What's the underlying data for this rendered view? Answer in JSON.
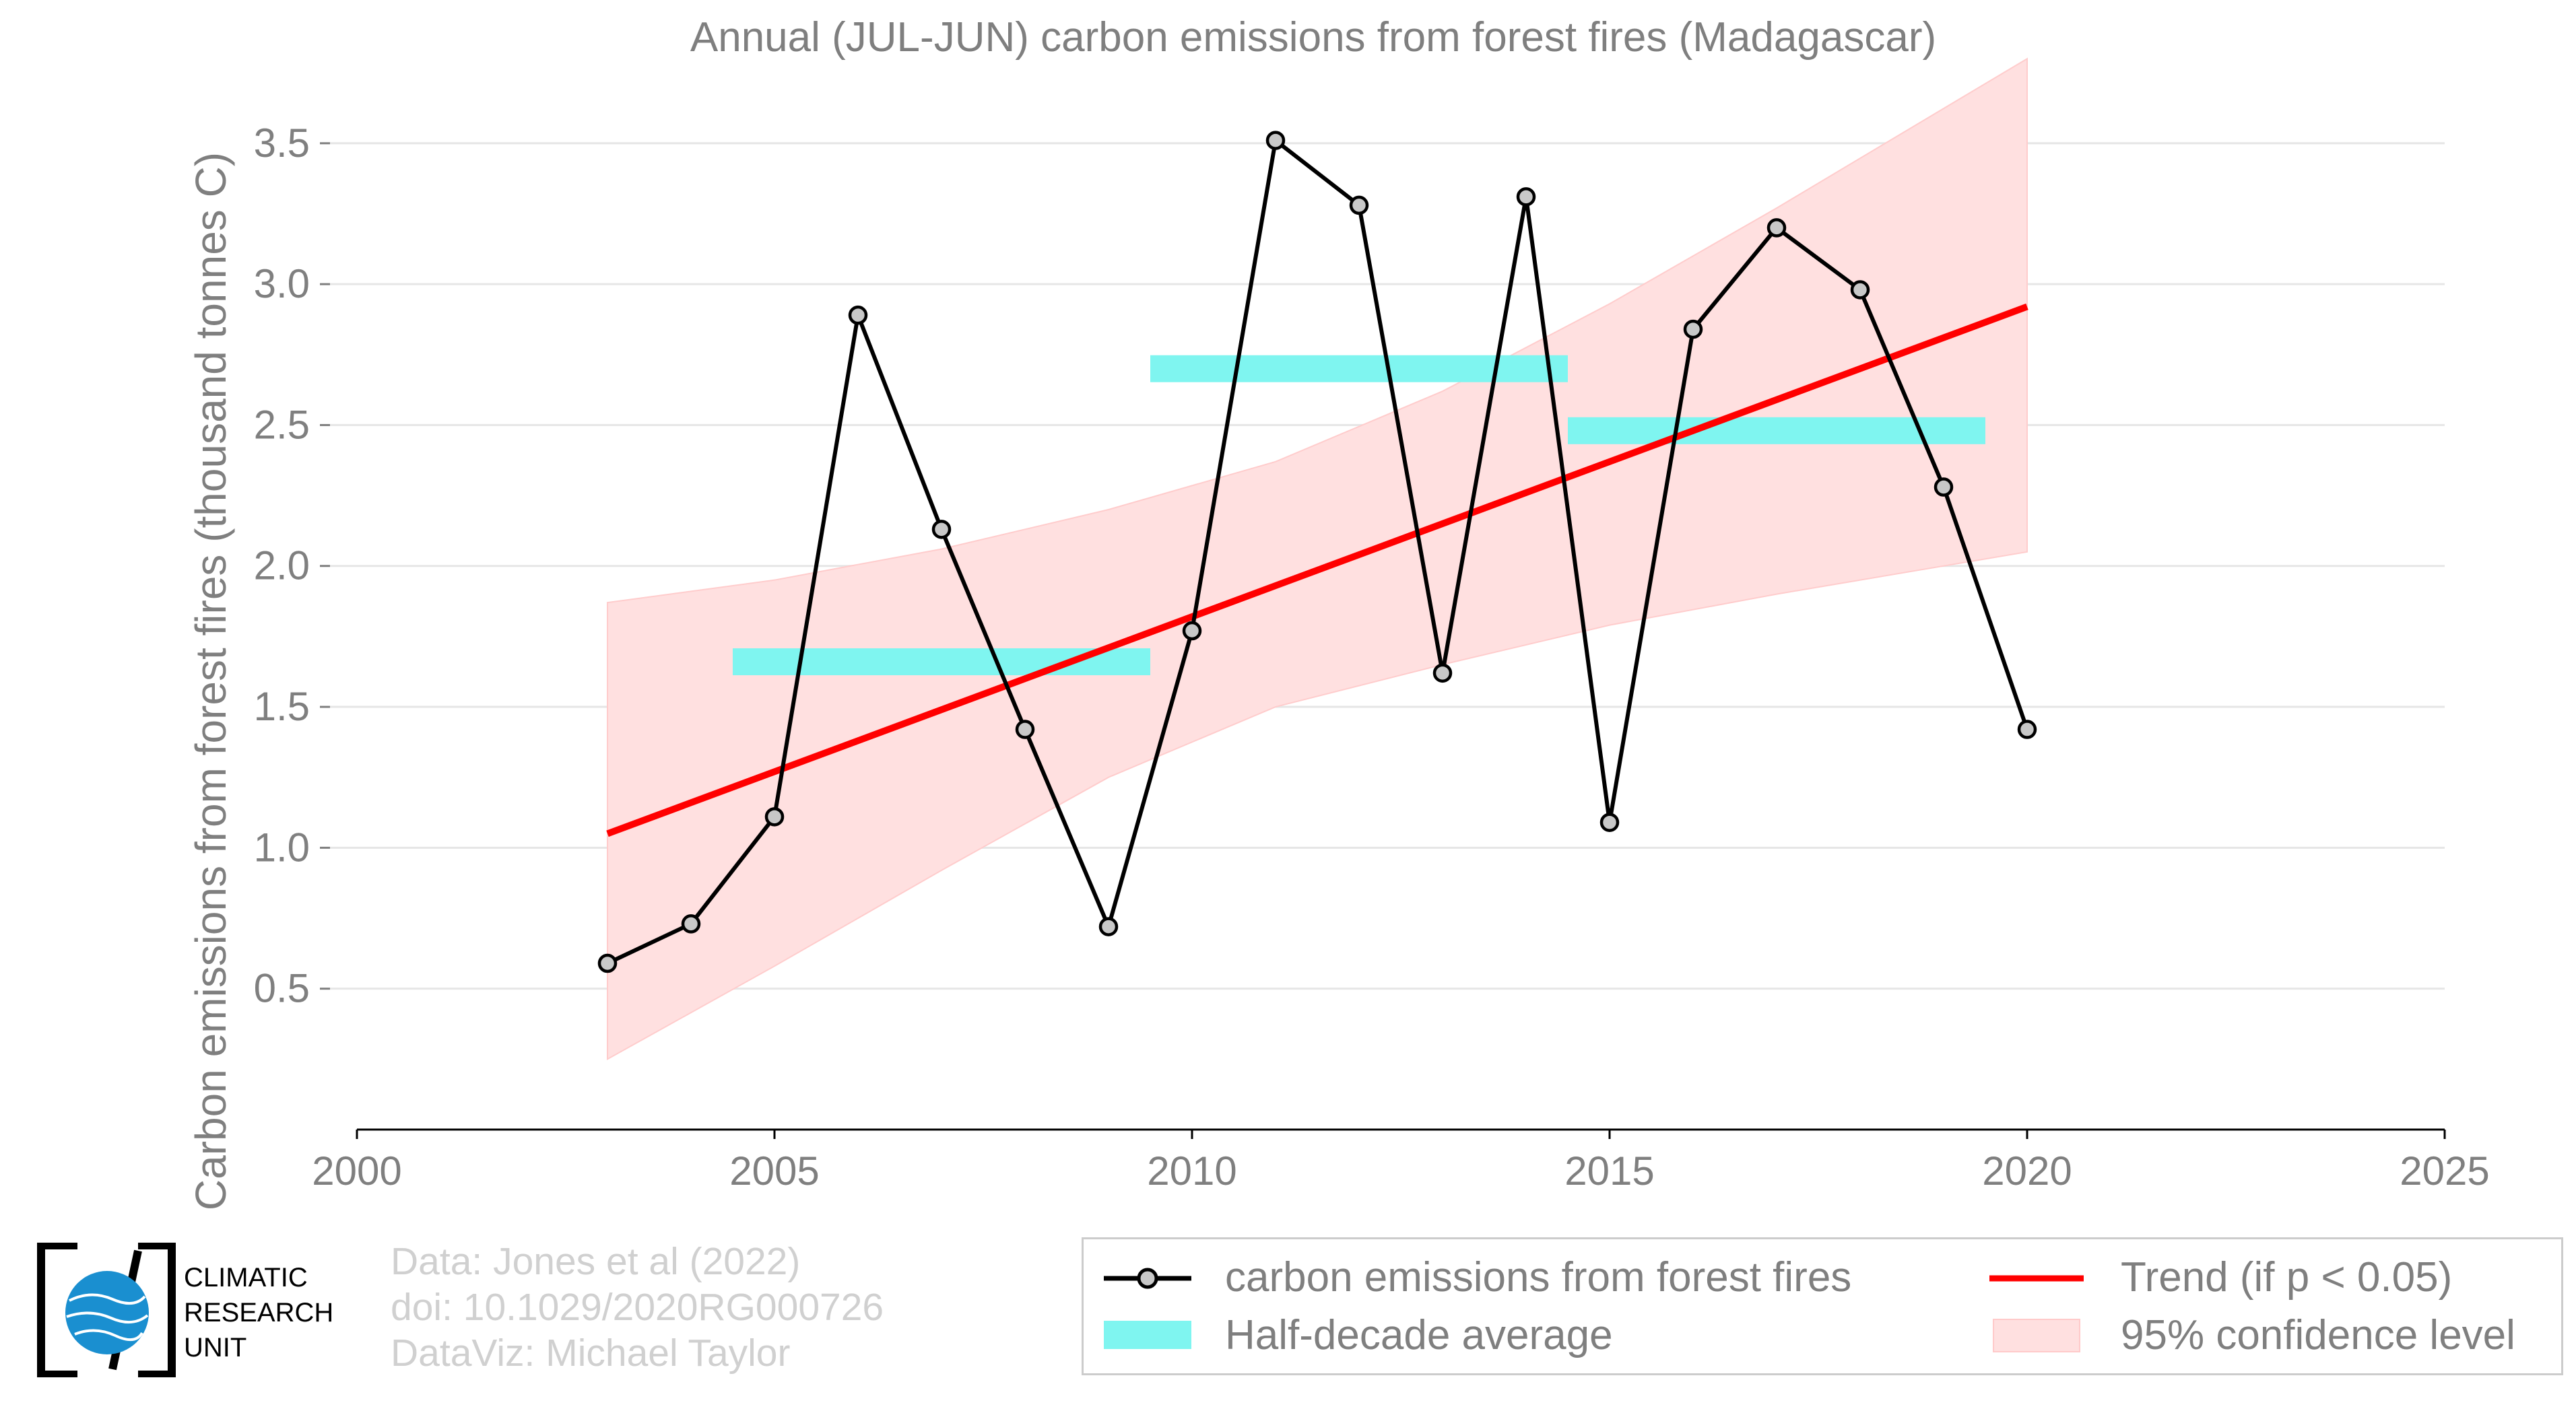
{
  "chart_data": {
    "type": "line",
    "title": "Annual (JUL-JUN) carbon emissions from forest fires (Madagascar)",
    "xlabel": "",
    "ylabel": "Carbon emissions from forest fires (thousand tonnes C)",
    "xlim": [
      2000,
      2025
    ],
    "ylim": [
      0,
      3.65
    ],
    "x_ticks": [
      "2000",
      "2005",
      "2010",
      "2015",
      "2020",
      "2025"
    ],
    "y_ticks": [
      "0.5",
      "1.0",
      "1.5",
      "2.0",
      "2.5",
      "3.0",
      "3.5"
    ],
    "grid": "horizontal",
    "legend_position": "bottom-right",
    "colors": {
      "series": "#000000",
      "marker_fill": "#c8c8c8",
      "half_decade": "#7ff5f0",
      "trend": "#ff0000",
      "confidence": "#ffe0e0"
    },
    "series": [
      {
        "name": "carbon emissions from forest fires",
        "x": [
          2003,
          2004,
          2005,
          2006,
          2007,
          2008,
          2009,
          2010,
          2011,
          2012,
          2013,
          2014,
          2015,
          2016,
          2017,
          2018,
          2019,
          2020
        ],
        "values": [
          0.59,
          0.73,
          1.11,
          2.89,
          2.13,
          1.42,
          0.72,
          1.77,
          3.51,
          3.28,
          1.62,
          3.31,
          1.09,
          2.84,
          3.2,
          2.98,
          2.28,
          1.42
        ]
      }
    ],
    "half_decade_average": {
      "name": "Half-decade average",
      "segments": [
        {
          "x_start": 2004.5,
          "x_end": 2009.5,
          "value": 1.66
        },
        {
          "x_start": 2009.5,
          "x_end": 2014.5,
          "value": 2.7
        },
        {
          "x_start": 2014.5,
          "x_end": 2019.5,
          "value": 2.48
        }
      ]
    },
    "trend": {
      "name": "Trend (if p < 0.05)",
      "x": [
        2003,
        2020
      ],
      "values": [
        1.05,
        2.92
      ]
    },
    "confidence": {
      "name": "95% confidence level",
      "x": [
        2003,
        2005,
        2007,
        2009,
        2011,
        2013,
        2015,
        2017,
        2020
      ],
      "upper": [
        1.87,
        1.95,
        2.06,
        2.2,
        2.37,
        2.62,
        2.93,
        3.27,
        3.8
      ],
      "lower": [
        0.25,
        0.58,
        0.92,
        1.25,
        1.5,
        1.65,
        1.79,
        1.9,
        2.05
      ]
    }
  },
  "credits": {
    "line1": "Data: Jones et al (2022)",
    "line2": "doi: 10.1029/2020RG000726",
    "line3": "DataViz: Michael Taylor"
  },
  "logo": {
    "line1": "CLIMATIC",
    "line2": "RESEARCH",
    "line3": "UNIT",
    "colors": {
      "globe": "#1a8fd0",
      "frame": "#000000"
    }
  },
  "legend": {
    "series_label": "carbon emissions from forest fires",
    "half_decade_label": "Half-decade average",
    "trend_label": "Trend (if p < 0.05)",
    "confidence_label": "95% confidence level"
  }
}
